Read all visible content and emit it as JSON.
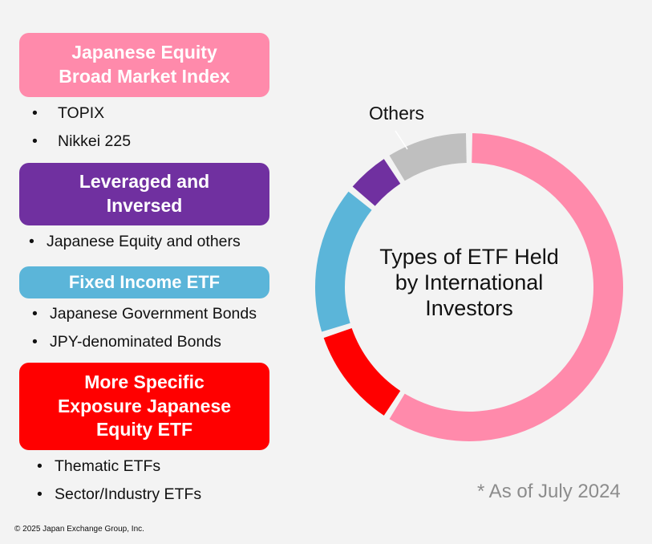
{
  "categories": [
    {
      "title_lines": [
        "Japanese Equity",
        "Broad Market Index"
      ],
      "color": "#ff8aab",
      "items": [
        "TOPIX",
        "Nikkei 225"
      ]
    },
    {
      "title_lines": [
        "Leveraged and",
        "Inversed"
      ],
      "color": "#7030a0",
      "items": [
        "Japanese Equity and others"
      ]
    },
    {
      "title_lines": [
        "Fixed Income ETF"
      ],
      "color": "#5bb5d9",
      "items": [
        "Japanese Government Bonds",
        "JPY-denominated Bonds"
      ]
    },
    {
      "title_lines": [
        "More Specific",
        "Exposure Japanese",
        "Equity ETF"
      ],
      "color": "#ff0000",
      "items": [
        "Thematic ETFs",
        "Sector/Industry ETFs"
      ]
    }
  ],
  "chart_data": {
    "type": "pie",
    "style": "donut",
    "title_lines": [
      "Types of ETF Held",
      "by International",
      "Investors"
    ],
    "slices": [
      {
        "color": "#ff8aab",
        "value": 59
      },
      {
        "color": "#ff0000",
        "value": 11
      },
      {
        "color": "#5bb5d9",
        "value": 16
      },
      {
        "color": "#7030a0",
        "value": 5
      },
      {
        "label": "Others",
        "color": "#bfbfbf",
        "value": 9
      }
    ]
  },
  "footnote": "* As of July 2024",
  "copyright": "© 2025 Japan Exchange Group, Inc."
}
